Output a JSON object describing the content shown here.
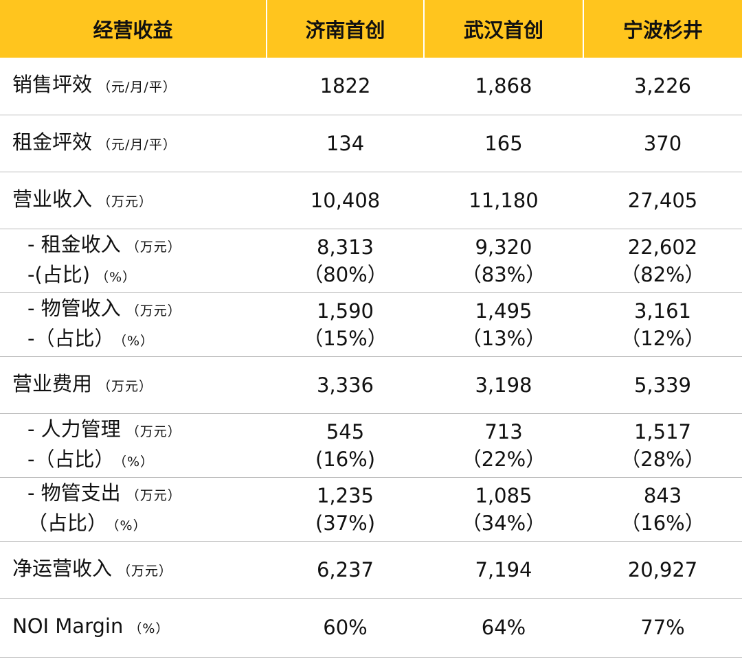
{
  "header": {
    "col0": "经营收益",
    "col1": "济南首创",
    "col2": "武汉首创",
    "col3": "宁波杉井"
  },
  "rows": [
    {
      "label": "销售坪效",
      "unit": "（元/月/平）",
      "v1": "1822",
      "v2": "1,868",
      "v3": "3,226"
    },
    {
      "label": "租金坪效",
      "unit": "（元/月/平）",
      "v1": "134",
      "v2": "165",
      "v3": "370"
    },
    {
      "label": "营业收入",
      "unit": "（万元）",
      "v1": "10,408",
      "v2": "11,180",
      "v3": "27,405"
    },
    {
      "label": "- 租金收入",
      "unit": "（万元）",
      "label2": "-(占比)",
      "unit2": "（%）",
      "v1": "8,313",
      "p1": "（80%）",
      "v2": "9,320",
      "p2": "（83%）",
      "v3": "22,602",
      "p3": "（82%）"
    },
    {
      "label": "- 物管收入",
      "unit": "（万元）",
      "label2": "-（占比）",
      "unit2": "（%）",
      "v1": "1,590",
      "p1": "（15%）",
      "v2": "1,495",
      "p2": "（13%）",
      "v3": "3,161",
      "p3": "（12%）"
    },
    {
      "label": "营业费用",
      "unit": "（万元）",
      "v1": "3,336",
      "v2": "3,198",
      "v3": "5,339"
    },
    {
      "label": "- 人力管理",
      "unit": "（万元）",
      "label2": "-（占比）",
      "unit2": "（%）",
      "v1": "545",
      "p1": "(16%)",
      "v2": "713",
      "p2": "（22%）",
      "v3": "1,517",
      "p3": "（28%）"
    },
    {
      "label": "- 物管支出",
      "unit": "（万元）",
      "label2": "（占比）",
      "unit2": "（%）",
      "v1": "1,235",
      "p1": "(37%)",
      "v2": "1,085",
      "p2": "（34%）",
      "v3": "843",
      "p3": "（16%）"
    },
    {
      "label": "净运营收入",
      "unit": "（万元）",
      "v1": "6,237",
      "v2": "7,194",
      "v3": "20,927"
    },
    {
      "label": "NOI Margin",
      "unit": "（%）",
      "v1": "60%",
      "v2": "64%",
      "v3": "77%"
    }
  ],
  "colors": {
    "header_bg": "#FFC51E",
    "divider": "#b9b9b9",
    "text": "#111111"
  }
}
